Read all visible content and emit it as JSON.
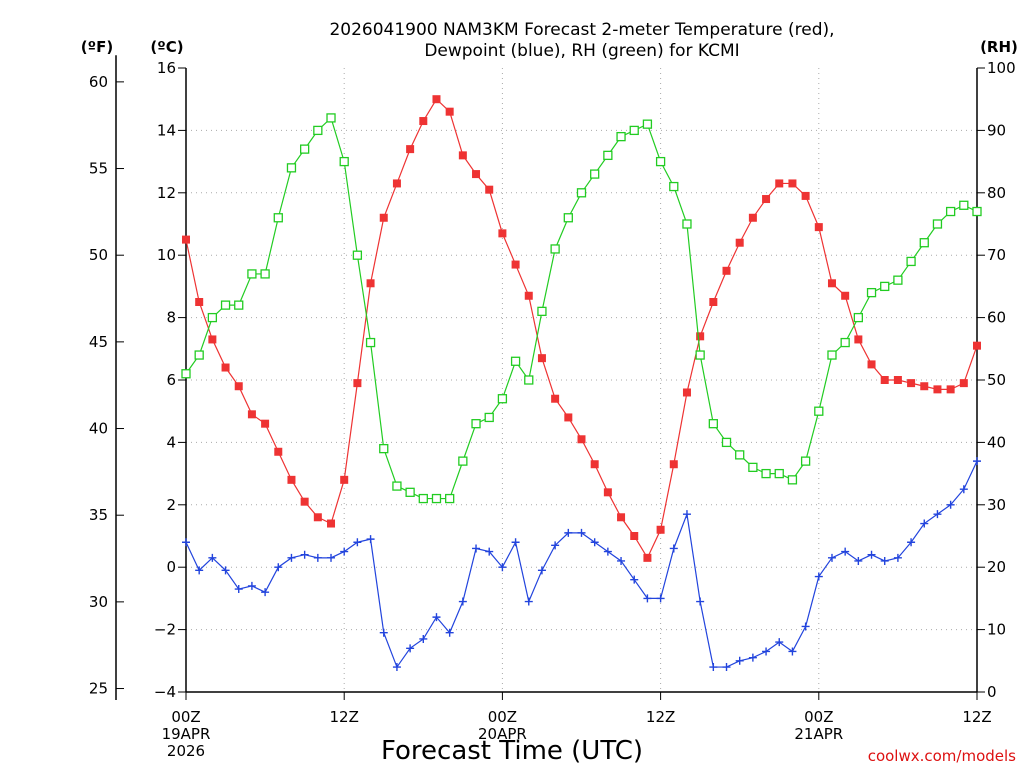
{
  "chart_data": {
    "type": "line",
    "title": [
      "2026041900 NAM3KM Forecast 2-meter Temperature (red),",
      "Dewpoint (blue), RH (green) for KCMI"
    ],
    "xlabel": "Forecast Time (UTC)",
    "units": {
      "fahrenheit": "(ºF)",
      "celsius": "(ºC)",
      "rh": "(RH)"
    },
    "credit": "coolwx.com/models",
    "x_range_hours": [
      0,
      60
    ],
    "x_ticks": [
      {
        "hour": 0,
        "lines": [
          "00Z",
          "19APR",
          "2026"
        ]
      },
      {
        "hour": 12,
        "lines": [
          "12Z"
        ]
      },
      {
        "hour": 24,
        "lines": [
          "00Z",
          "20APR"
        ]
      },
      {
        "hour": 36,
        "lines": [
          "12Z"
        ]
      },
      {
        "hour": 48,
        "lines": [
          "00Z",
          "21APR"
        ]
      },
      {
        "hour": 60,
        "lines": [
          "12Z"
        ]
      }
    ],
    "y_celsius": {
      "range": [
        -4,
        16
      ],
      "ticks": [
        "−4",
        "−2",
        "0",
        "2",
        "4",
        "6",
        "8",
        "10",
        "12",
        "14",
        "16"
      ]
    },
    "y_fahrenheit": {
      "ticks": [
        "25",
        "30",
        "35",
        "40",
        "45",
        "50",
        "55",
        "60"
      ]
    },
    "y_rh": {
      "range": [
        0,
        100
      ],
      "ticks": [
        "0",
        "10",
        "20",
        "30",
        "40",
        "50",
        "60",
        "70",
        "80",
        "90",
        "100"
      ]
    },
    "grid": true,
    "series": [
      {
        "name": "2-meter Temperature",
        "unit": "C",
        "axis": "celsius",
        "color": "#ee3333",
        "marker": "filled-square",
        "values": [
          10.5,
          8.5,
          7.3,
          6.4,
          5.8,
          4.9,
          4.6,
          3.7,
          2.8,
          2.1,
          1.6,
          1.4,
          2.8,
          5.9,
          9.1,
          11.2,
          12.3,
          13.4,
          14.3,
          15.0,
          14.6,
          13.2,
          12.6,
          12.1,
          10.7,
          9.7,
          8.7,
          6.7,
          5.4,
          4.8,
          4.1,
          3.3,
          2.4,
          1.6,
          1.0,
          0.3,
          1.2,
          3.3,
          5.6,
          7.4,
          8.5,
          9.5,
          10.4,
          11.2,
          11.8,
          12.3,
          12.3,
          11.9,
          10.9,
          9.1,
          8.7,
          7.3,
          6.5,
          6.0,
          6.0,
          5.9,
          5.8,
          5.7,
          5.7,
          5.9,
          7.1
        ]
      },
      {
        "name": "Dewpoint",
        "unit": "C",
        "axis": "celsius",
        "color": "#2244dd",
        "marker": "plus",
        "values": [
          0.8,
          -0.1,
          0.3,
          -0.1,
          -0.7,
          -0.6,
          -0.8,
          -0.0,
          0.3,
          0.4,
          0.3,
          0.3,
          0.5,
          0.8,
          0.9,
          -2.1,
          -3.2,
          -2.6,
          -2.3,
          -1.6,
          -2.1,
          -1.1,
          0.6,
          0.5,
          -0.0,
          0.8,
          -1.1,
          -0.1,
          0.7,
          1.1,
          1.1,
          0.8,
          0.5,
          0.2,
          -0.4,
          -1.0,
          -1.0,
          0.6,
          1.7,
          -1.1,
          -3.2,
          -3.2,
          -3.0,
          -2.9,
          -2.7,
          -2.4,
          -2.7,
          -1.9,
          -0.3,
          0.3,
          0.5,
          0.2,
          0.4,
          0.2,
          0.3,
          0.8,
          1.4,
          1.7,
          2.0,
          2.5,
          3.4
        ]
      },
      {
        "name": "RH",
        "unit": "%",
        "axis": "rh",
        "color": "#22cc22",
        "marker": "open-square",
        "values": [
          51,
          54,
          60,
          62,
          62,
          67,
          67,
          76,
          84,
          87,
          90,
          92,
          85,
          70,
          56,
          39,
          33,
          32,
          31,
          31,
          31,
          37,
          43,
          44,
          47,
          53,
          50,
          61,
          71,
          76,
          80,
          83,
          86,
          89,
          90,
          91,
          85,
          81,
          75,
          54,
          43,
          40,
          38,
          36,
          35,
          35,
          34,
          37,
          45,
          54,
          56,
          60,
          64,
          65,
          66,
          69,
          72,
          75,
          77,
          78,
          77
        ]
      }
    ]
  }
}
